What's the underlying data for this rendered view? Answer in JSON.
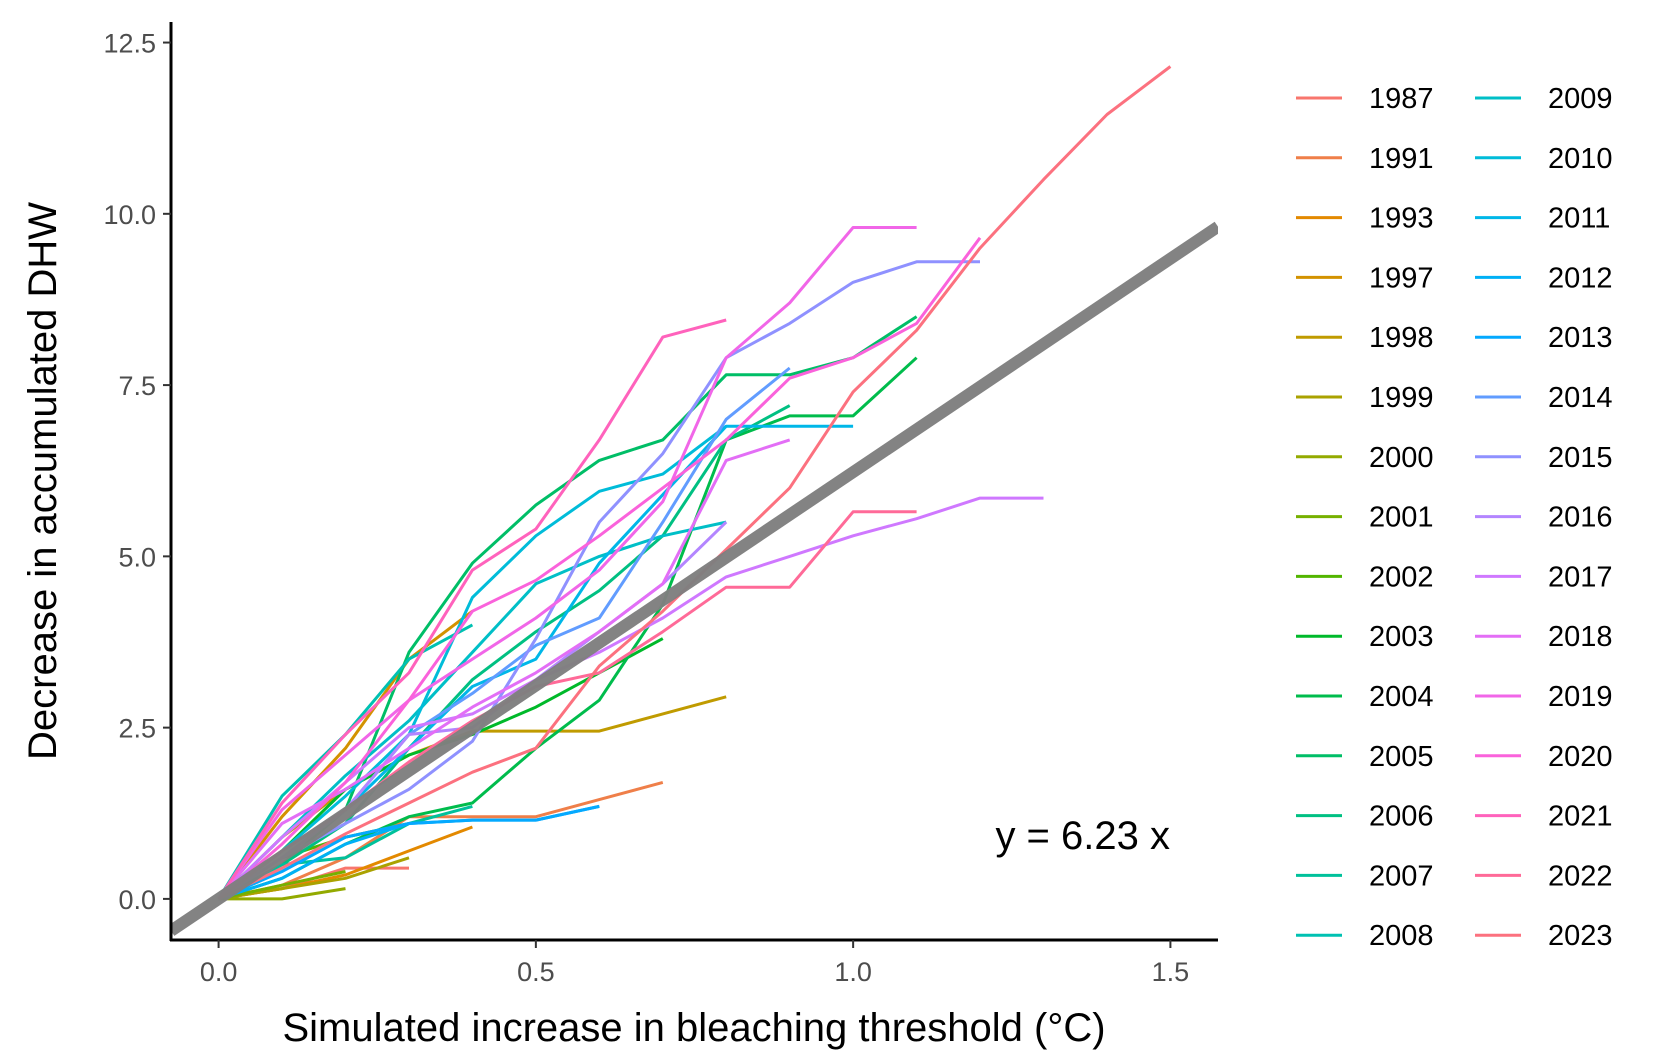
{
  "chart_data": {
    "type": "line",
    "xlabel": "Simulated increase in bleaching threshold (°C)",
    "ylabel": "Decrease in accumulated DHW",
    "xlim": [
      -0.075,
      1.575
    ],
    "ylim": [
      -0.6,
      12.8
    ],
    "xticks": [
      0.0,
      0.5,
      1.0,
      1.5
    ],
    "xtick_labels": [
      "0.0",
      "0.5",
      "1.0",
      "1.5"
    ],
    "yticks": [
      0.0,
      2.5,
      5.0,
      7.5,
      10.0,
      12.5
    ],
    "ytick_labels": [
      "0.0",
      "2.5",
      "5.0",
      "7.5",
      "10.0",
      "12.5"
    ],
    "grid": false,
    "legend_position": "right",
    "legend_columns": 2,
    "annotation": "y = 6.23 x",
    "fit_line": {
      "slope": 6.23,
      "color": "#7f7f7f"
    },
    "series": [
      {
        "name": "1987",
        "color": "#F8766D",
        "x": [
          0,
          0.1,
          0.2,
          0.3
        ],
        "y": [
          0,
          0.15,
          0.45,
          0.45
        ]
      },
      {
        "name": "1991",
        "color": "#EF7F49",
        "x": [
          0,
          0.1,
          0.2,
          0.3,
          0.4,
          0.5,
          0.6,
          0.7
        ],
        "y": [
          0,
          0.2,
          0.6,
          1.2,
          1.2,
          1.2,
          1.45,
          1.7
        ]
      },
      {
        "name": "1993",
        "color": "#E38900",
        "x": [
          0,
          0.1,
          0.2,
          0.3,
          0.4
        ],
        "y": [
          0,
          0.15,
          0.35,
          0.7,
          1.05
        ]
      },
      {
        "name": "1997",
        "color": "#D39200",
        "x": [
          0,
          0.1,
          0.2,
          0.3,
          0.4
        ],
        "y": [
          0,
          1.2,
          2.2,
          3.5,
          4.2
        ]
      },
      {
        "name": "1998",
        "color": "#C09B00",
        "x": [
          0,
          0.1,
          0.2,
          0.3,
          0.4,
          0.5,
          0.6,
          0.7,
          0.8
        ],
        "y": [
          0,
          0.9,
          1.6,
          2.1,
          2.45,
          2.45,
          2.45,
          2.7,
          2.95
        ]
      },
      {
        "name": "1999",
        "color": "#AAA200",
        "x": [
          0,
          0.1,
          0.2,
          0.3
        ],
        "y": [
          0,
          0.15,
          0.3,
          0.6
        ]
      },
      {
        "name": "2000",
        "color": "#93AA00",
        "x": [
          0,
          0.1,
          0.2
        ],
        "y": [
          0,
          0.0,
          0.15
        ]
      },
      {
        "name": "2001",
        "color": "#76B000",
        "x": [
          0,
          0.1,
          0.2
        ],
        "y": [
          0,
          0.2,
          0.4
        ]
      },
      {
        "name": "2002",
        "color": "#52B500",
        "x": [
          0,
          0.1,
          0.2,
          0.3
        ],
        "y": [
          0,
          0.6,
          0.9,
          1.1
        ]
      },
      {
        "name": "2003",
        "color": "#00B92A",
        "x": [
          0,
          0.1,
          0.2,
          0.3,
          0.4,
          0.5,
          0.6,
          0.7
        ],
        "y": [
          0,
          0.7,
          1.6,
          2.1,
          2.4,
          2.8,
          3.3,
          3.8
        ]
      },
      {
        "name": "2004",
        "color": "#00BC4C",
        "x": [
          0,
          0.1,
          0.2,
          0.3,
          0.4,
          0.5,
          0.6,
          0.7,
          0.8,
          0.9,
          1.0,
          1.1
        ],
        "y": [
          0,
          0.3,
          0.8,
          1.2,
          1.4,
          2.2,
          2.9,
          4.3,
          6.7,
          7.05,
          7.05,
          7.9
        ]
      },
      {
        "name": "2005",
        "color": "#00BE67",
        "x": [
          0,
          0.1,
          0.2,
          0.3,
          0.4,
          0.5,
          0.6,
          0.7,
          0.8,
          0.9,
          1.0,
          1.1
        ],
        "y": [
          0,
          0.5,
          1.3,
          3.6,
          4.9,
          5.75,
          6.4,
          6.7,
          7.65,
          7.65,
          7.9,
          8.5
        ]
      },
      {
        "name": "2006",
        "color": "#00C082",
        "x": [
          0,
          0.1,
          0.2,
          0.3,
          0.4,
          0.5,
          0.6,
          0.7,
          0.8,
          0.9
        ],
        "y": [
          0,
          0.5,
          1.1,
          2.2,
          3.2,
          3.9,
          4.5,
          5.3,
          6.7,
          7.2
        ]
      },
      {
        "name": "2007",
        "color": "#00C19B",
        "x": [
          0,
          0.1,
          0.2,
          0.3,
          0.4
        ],
        "y": [
          0,
          0.5,
          0.6,
          1.1,
          1.35
        ]
      },
      {
        "name": "2008",
        "color": "#00C1B2",
        "x": [
          0,
          0.1,
          0.2,
          0.3,
          0.4
        ],
        "y": [
          0,
          1.5,
          2.4,
          3.5,
          4.0
        ]
      },
      {
        "name": "2009",
        "color": "#00BFC7",
        "x": [
          0,
          0.1,
          0.2,
          0.3,
          0.4,
          0.5,
          0.6,
          0.7,
          0.8
        ],
        "y": [
          0,
          0.9,
          1.8,
          2.6,
          3.6,
          4.6,
          5.0,
          5.3,
          5.5
        ]
      },
      {
        "name": "2010",
        "color": "#00BCD9",
        "x": [
          0,
          0.1,
          0.2,
          0.3,
          0.4,
          0.5,
          0.6,
          0.7,
          0.8
        ],
        "y": [
          0,
          0.7,
          1.5,
          2.4,
          4.4,
          5.3,
          5.95,
          6.2,
          6.9
        ]
      },
      {
        "name": "2011",
        "color": "#00B7E8",
        "x": [
          0,
          0.1,
          0.2,
          0.3,
          0.4,
          0.5,
          0.6,
          0.7,
          0.8,
          0.9,
          1.0
        ],
        "y": [
          0,
          0.6,
          1.3,
          2.2,
          3.1,
          3.5,
          4.9,
          5.9,
          6.9,
          6.9,
          6.9
        ]
      },
      {
        "name": "2012",
        "color": "#00B0F6",
        "x": [
          0,
          0.1,
          0.2,
          0.3,
          0.4,
          0.5,
          0.6
        ],
        "y": [
          0,
          0.3,
          0.8,
          1.1,
          1.15,
          1.15,
          1.35
        ]
      },
      {
        "name": "2013",
        "color": "#04A9FF",
        "x": [
          0,
          0.1,
          0.2,
          0.3,
          0.4,
          0.5,
          0.6
        ],
        "y": [
          0,
          0.4,
          0.9,
          1.1,
          1.15,
          1.15,
          1.35
        ]
      },
      {
        "name": "2014",
        "color": "#619CFF",
        "x": [
          0,
          0.1,
          0.2,
          0.3,
          0.4,
          0.5,
          0.6,
          0.7,
          0.8,
          0.9
        ],
        "y": [
          0,
          0.7,
          1.3,
          2.4,
          3.0,
          3.7,
          4.1,
          5.5,
          7.0,
          7.75
        ]
      },
      {
        "name": "2015",
        "color": "#8F91FF",
        "x": [
          0,
          0.1,
          0.2,
          0.3,
          0.4,
          0.5,
          0.6,
          0.7,
          0.8,
          0.9,
          1.0,
          1.1,
          1.2
        ],
        "y": [
          0,
          0.6,
          1.1,
          1.6,
          2.3,
          3.8,
          5.5,
          6.5,
          7.9,
          8.4,
          9.0,
          9.3,
          9.3
        ]
      },
      {
        "name": "2016",
        "color": "#B385FF",
        "x": [
          0,
          0.1,
          0.2,
          0.3,
          0.4,
          0.5,
          0.6,
          0.7,
          0.8
        ],
        "y": [
          0,
          0.6,
          1.3,
          2.4,
          2.5,
          3.2,
          3.9,
          4.6,
          5.5
        ]
      },
      {
        "name": "2017",
        "color": "#CF78FF",
        "x": [
          0,
          0.1,
          0.2,
          0.3,
          0.4,
          0.5,
          0.6,
          0.7,
          0.8,
          0.9,
          1.0,
          1.1,
          1.2,
          1.3
        ],
        "y": [
          0,
          0.9,
          1.7,
          2.5,
          2.7,
          3.2,
          3.6,
          4.1,
          4.7,
          5.0,
          5.3,
          5.55,
          5.85,
          5.85
        ]
      },
      {
        "name": "2018",
        "color": "#E36EF6",
        "x": [
          0,
          0.1,
          0.2,
          0.3,
          0.4,
          0.5,
          0.6,
          0.7,
          0.8,
          0.9
        ],
        "y": [
          0,
          1.1,
          1.6,
          2.2,
          2.8,
          3.3,
          3.9,
          4.6,
          6.4,
          6.7
        ]
      },
      {
        "name": "2019",
        "color": "#F166E8",
        "x": [
          0,
          0.1,
          0.2,
          0.3,
          0.4,
          0.5,
          0.6,
          0.7,
          0.8,
          0.9,
          1.0,
          1.1
        ],
        "y": [
          0,
          1.3,
          2.1,
          2.9,
          3.5,
          4.1,
          4.8,
          5.8,
          7.9,
          8.7,
          9.8,
          9.8
        ]
      },
      {
        "name": "2020",
        "color": "#FA62DB",
        "x": [
          0,
          0.1,
          0.2,
          0.3,
          0.4,
          0.5,
          0.6,
          0.7,
          0.8,
          0.9,
          1.0,
          1.1,
          1.2
        ],
        "y": [
          0,
          0.8,
          1.7,
          2.9,
          4.2,
          4.65,
          5.3,
          6.0,
          6.7,
          7.6,
          7.9,
          8.4,
          9.65
        ]
      },
      {
        "name": "2021",
        "color": "#FF62BC",
        "x": [
          0,
          0.1,
          0.2,
          0.3,
          0.4,
          0.5,
          0.6,
          0.7,
          0.8
        ],
        "y": [
          0,
          1.4,
          2.4,
          3.3,
          4.8,
          5.4,
          6.7,
          8.2,
          8.45
        ]
      },
      {
        "name": "2022",
        "color": "#FF6A98",
        "x": [
          0,
          0.1,
          0.2,
          0.3,
          0.4,
          0.5,
          0.6,
          0.7,
          0.8,
          0.9,
          1.0,
          1.1
        ],
        "y": [
          0,
          0.7,
          1.3,
          2.0,
          2.6,
          3.1,
          3.3,
          3.9,
          4.55,
          4.55,
          5.65,
          5.65
        ]
      },
      {
        "name": "2023",
        "color": "#FC717F",
        "x": [
          0,
          0.1,
          0.2,
          0.3,
          0.4,
          0.5,
          0.6,
          0.7,
          0.8,
          0.9,
          1.0,
          1.1,
          1.2,
          1.3,
          1.4,
          1.5
        ],
        "y": [
          0,
          0.45,
          0.95,
          1.4,
          1.85,
          2.2,
          3.4,
          4.2,
          5.1,
          6.0,
          7.4,
          8.3,
          9.5,
          10.5,
          11.45,
          12.15
        ]
      }
    ]
  }
}
